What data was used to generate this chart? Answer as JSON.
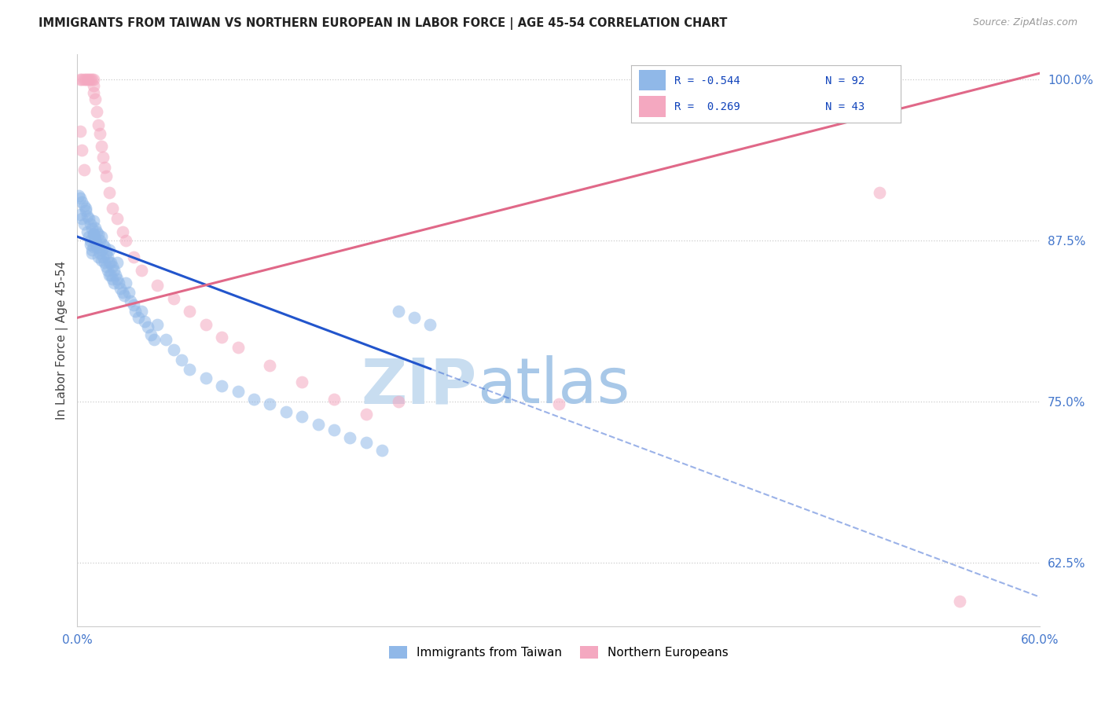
{
  "title": "IMMIGRANTS FROM TAIWAN VS NORTHERN EUROPEAN IN LABOR FORCE | AGE 45-54 CORRELATION CHART",
  "source": "Source: ZipAtlas.com",
  "ylabel": "In Labor Force | Age 45-54",
  "xlim": [
    0.0,
    0.6
  ],
  "ylim": [
    0.575,
    1.02
  ],
  "taiwan_color": "#90b8e8",
  "northern_color": "#f4a8c0",
  "taiwan_line_color": "#2255cc",
  "northern_line_color": "#e06888",
  "taiwan_line_solid_end": 0.22,
  "taiwan_line_x0": 0.0,
  "taiwan_line_y0": 0.878,
  "taiwan_line_x1": 0.6,
  "taiwan_line_y1": 0.598,
  "northern_line_x0": 0.0,
  "northern_line_y0": 0.815,
  "northern_line_x1": 0.6,
  "northern_line_y1": 1.005,
  "taiwan_pts_x": [
    0.002,
    0.003,
    0.004,
    0.005,
    0.006,
    0.007,
    0.008,
    0.008,
    0.009,
    0.009,
    0.01,
    0.01,
    0.01,
    0.011,
    0.011,
    0.012,
    0.012,
    0.013,
    0.013,
    0.013,
    0.014,
    0.014,
    0.015,
    0.015,
    0.015,
    0.016,
    0.016,
    0.017,
    0.017,
    0.018,
    0.018,
    0.019,
    0.019,
    0.02,
    0.02,
    0.02,
    0.021,
    0.021,
    0.022,
    0.022,
    0.023,
    0.023,
    0.024,
    0.025,
    0.025,
    0.026,
    0.027,
    0.028,
    0.029,
    0.03,
    0.032,
    0.033,
    0.035,
    0.036,
    0.038,
    0.04,
    0.042,
    0.044,
    0.046,
    0.048,
    0.05,
    0.055,
    0.06,
    0.065,
    0.07,
    0.08,
    0.09,
    0.1,
    0.11,
    0.12,
    0.13,
    0.14,
    0.15,
    0.16,
    0.17,
    0.18,
    0.19,
    0.2,
    0.21,
    0.22,
    0.001,
    0.002,
    0.003,
    0.004,
    0.005,
    0.006,
    0.007,
    0.008,
    0.009,
    0.01,
    0.011,
    0.012
  ],
  "taiwan_pts_y": [
    0.895,
    0.892,
    0.888,
    0.9,
    0.882,
    0.878,
    0.875,
    0.872,
    0.868,
    0.865,
    0.89,
    0.88,
    0.87,
    0.885,
    0.875,
    0.882,
    0.872,
    0.88,
    0.87,
    0.862,
    0.875,
    0.865,
    0.878,
    0.868,
    0.86,
    0.872,
    0.862,
    0.87,
    0.858,
    0.865,
    0.855,
    0.862,
    0.852,
    0.868,
    0.858,
    0.848,
    0.858,
    0.848,
    0.855,
    0.845,
    0.852,
    0.842,
    0.848,
    0.858,
    0.845,
    0.842,
    0.838,
    0.835,
    0.832,
    0.842,
    0.835,
    0.828,
    0.825,
    0.82,
    0.815,
    0.82,
    0.812,
    0.808,
    0.802,
    0.798,
    0.81,
    0.798,
    0.79,
    0.782,
    0.775,
    0.768,
    0.762,
    0.758,
    0.752,
    0.748,
    0.742,
    0.738,
    0.732,
    0.728,
    0.722,
    0.718,
    0.712,
    0.82,
    0.815,
    0.81,
    0.91,
    0.908,
    0.905,
    0.902,
    0.898,
    0.894,
    0.892,
    0.888,
    0.884,
    0.88,
    0.876,
    0.87
  ],
  "northern_pts_x": [
    0.002,
    0.003,
    0.004,
    0.005,
    0.006,
    0.007,
    0.008,
    0.009,
    0.01,
    0.01,
    0.01,
    0.011,
    0.012,
    0.013,
    0.014,
    0.015,
    0.016,
    0.017,
    0.018,
    0.02,
    0.022,
    0.025,
    0.028,
    0.03,
    0.035,
    0.04,
    0.05,
    0.06,
    0.07,
    0.08,
    0.09,
    0.1,
    0.12,
    0.14,
    0.16,
    0.18,
    0.2,
    0.3,
    0.5,
    0.55,
    0.002,
    0.003,
    0.004
  ],
  "northern_pts_y": [
    1.0,
    1.0,
    1.0,
    1.0,
    1.0,
    1.0,
    1.0,
    1.0,
    1.0,
    0.995,
    0.99,
    0.985,
    0.975,
    0.965,
    0.958,
    0.948,
    0.94,
    0.932,
    0.925,
    0.912,
    0.9,
    0.892,
    0.882,
    0.875,
    0.862,
    0.852,
    0.84,
    0.83,
    0.82,
    0.81,
    0.8,
    0.792,
    0.778,
    0.765,
    0.752,
    0.74,
    0.75,
    0.748,
    0.912,
    0.595,
    0.96,
    0.945,
    0.93
  ],
  "watermark_zip_color": "#c8ddf0",
  "watermark_atlas_color": "#a8c8e8"
}
